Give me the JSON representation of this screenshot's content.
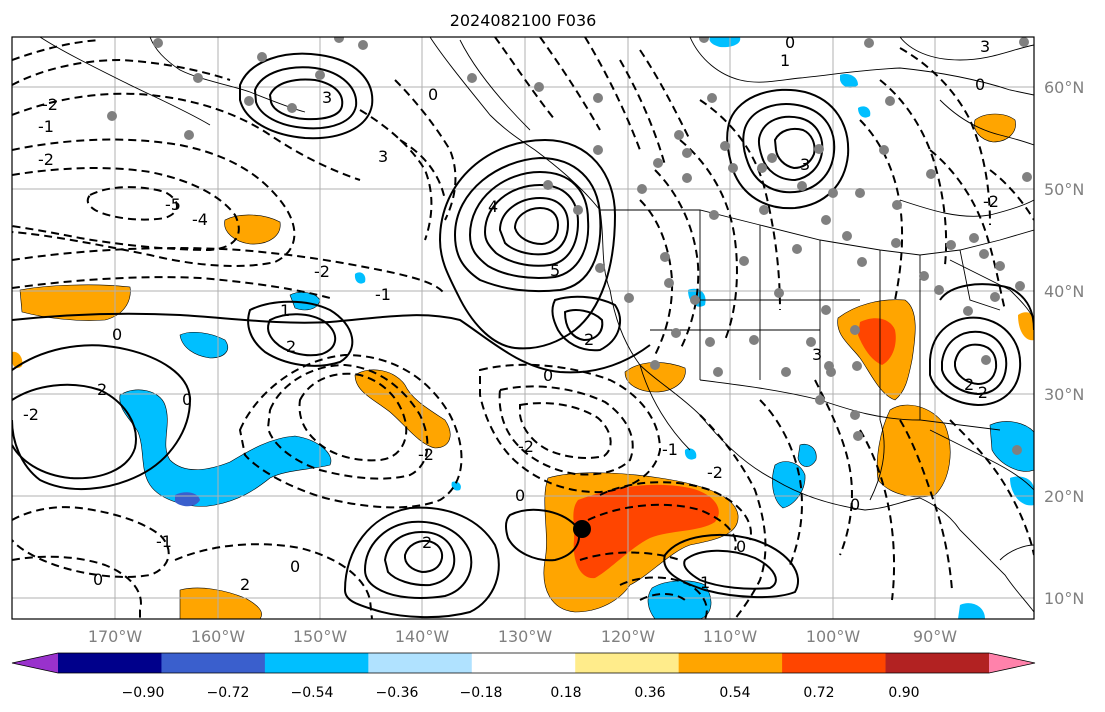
{
  "title": "2024082100 F036",
  "lat_labels": [
    "60°N",
    "50°N",
    "40°N",
    "30°N",
    "20°N",
    "10°N"
  ],
  "lon_labels": [
    "170°W",
    "160°W",
    "150°W",
    "140°W",
    "130°W",
    "120°W",
    "110°W",
    "100°W",
    "90°W"
  ],
  "colorbar": {
    "colors": [
      "#9932cc",
      "#00008b",
      "#3a5fcd",
      "#00bfff",
      "#b0e2ff",
      "#ffffff",
      "#ffec8b",
      "#ffa500",
      "#ff4500",
      "#b22222",
      "#ff82ab"
    ],
    "tick_labels": [
      "−0.90",
      "−0.72",
      "−0.54",
      "−0.36",
      "−0.18",
      "0.18",
      "0.36",
      "0.54",
      "0.72",
      "0.90"
    ]
  },
  "colors": {
    "positive_contour": "#000000",
    "negative_contour": "#000000",
    "station_dot": "#808080",
    "marker": "#000000"
  },
  "contour_labels": [
    "2",
    "1",
    "0",
    "-1",
    "-2",
    "3",
    "4",
    "5",
    "-4",
    "-5"
  ]
}
